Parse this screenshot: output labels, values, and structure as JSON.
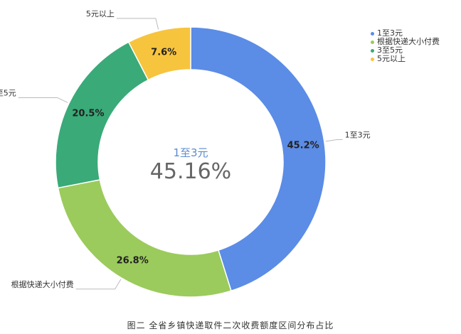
{
  "chart_data": {
    "type": "pie",
    "variant": "donut",
    "slices": [
      {
        "name": "1至3元",
        "value": 45.2,
        "label": "45.2%",
        "color": "#5b8ce6"
      },
      {
        "name": "根据快递大小付费",
        "value": 26.8,
        "label": "26.8%",
        "color": "#9bcb5c"
      },
      {
        "name": "3至5元",
        "value": 20.5,
        "label": "20.5%",
        "color": "#3aaa78"
      },
      {
        "name": "5元以上",
        "value": 7.6,
        "label": "7.6%",
        "color": "#f7c43e"
      }
    ],
    "center": {
      "name": "1至3元",
      "value": "45.16%"
    },
    "legend_position": "top-right"
  },
  "caption": "图二  全省乡镇快递取件二次收费额度区间分布占比"
}
